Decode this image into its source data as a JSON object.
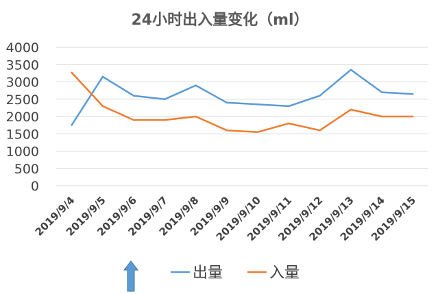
{
  "chart_data": {
    "type": "line",
    "title": "24小时出入量变化（ml）",
    "categories": [
      "2019/9/4",
      "2019/9/5",
      "2019/9/6",
      "2019/9/7",
      "2019/9/8",
      "2019/9/9",
      "2019/9/10",
      "2019/9/11",
      "2019/9/12",
      "2019/9/13",
      "2019/9/14",
      "2019/9/15"
    ],
    "series": [
      {
        "name": "出量",
        "color": "#5B9BD5",
        "values": [
          1750,
          3150,
          2600,
          2500,
          2900,
          2400,
          2350,
          2300,
          2600,
          3350,
          2700,
          2650
        ]
      },
      {
        "name": "入量",
        "color": "#ED7D31",
        "values": [
          3270,
          2300,
          1900,
          1900,
          2000,
          1600,
          1550,
          1800,
          1600,
          2200,
          2000,
          2000
        ]
      }
    ],
    "ylim": [
      0,
      4000
    ],
    "yticks": [
      "0",
      "500",
      "1000",
      "1500",
      "2000",
      "2500",
      "3000",
      "3500",
      "4000"
    ],
    "ytick_values": [
      0,
      500,
      1000,
      1500,
      2000,
      2500,
      3000,
      3500,
      4000
    ],
    "grid": true,
    "legend": "bottom",
    "xlabel": "",
    "ylabel": ""
  },
  "annotation": {
    "icon": "arrow-up-icon",
    "color": "#5B9BD5"
  }
}
